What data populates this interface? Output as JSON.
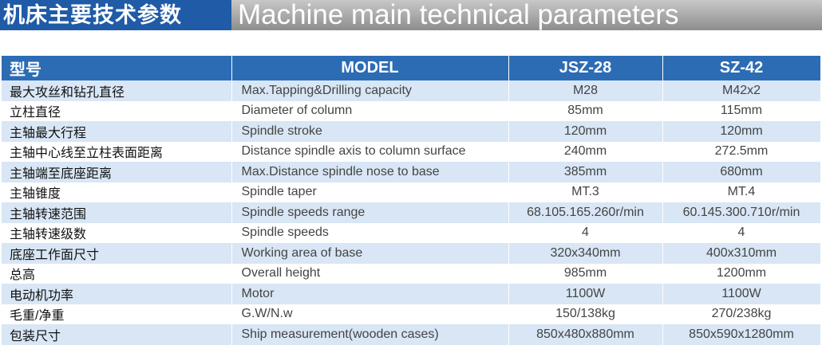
{
  "header": {
    "title_cn": "机床主要技术参数",
    "title_en": "Machine main technical parameters"
  },
  "table": {
    "columns": [
      "型号",
      "MODEL",
      "JSZ-28",
      "SZ-42"
    ],
    "rows": [
      [
        "最大攻丝和钻孔直径",
        "Max.Tapping&Drilling capacity",
        "M28",
        "M42x2"
      ],
      [
        "立柱直径",
        "Diameter of column",
        "85mm",
        "115mm"
      ],
      [
        "主轴最大行程",
        "Spindle stroke",
        "120mm",
        "120mm"
      ],
      [
        "主轴中心线至立柱表面距离",
        "Distance spindle axis to column surface",
        "240mm",
        "272.5mm"
      ],
      [
        "主轴端至底座距离",
        "Max.Distance spindle nose to base",
        "385mm",
        "680mm"
      ],
      [
        "主轴锥度",
        "Spindle taper",
        "MT.3",
        "MT.4"
      ],
      [
        "主轴转速范围",
        "Spindle speeds range",
        "68.105.165.260r/min",
        "60.145.300.710r/min"
      ],
      [
        "主轴转速级数",
        "Spindle speeds",
        "4",
        "4"
      ],
      [
        "底座工作面尺寸",
        "Working area of base",
        "320x340mm",
        "400x310mm"
      ],
      [
        "总高",
        "Overall height",
        "985mm",
        "1200mm"
      ],
      [
        "电动机功率",
        "Motor",
        "1100W",
        "1100W"
      ],
      [
        "毛重/净重",
        "G.W/N.w",
        "150/138kg",
        "270/238kg"
      ],
      [
        "包装尺寸",
        "Ship measurement(wooden cases)",
        "850x480x880mm",
        "850x590x1280mm"
      ]
    ]
  }
}
